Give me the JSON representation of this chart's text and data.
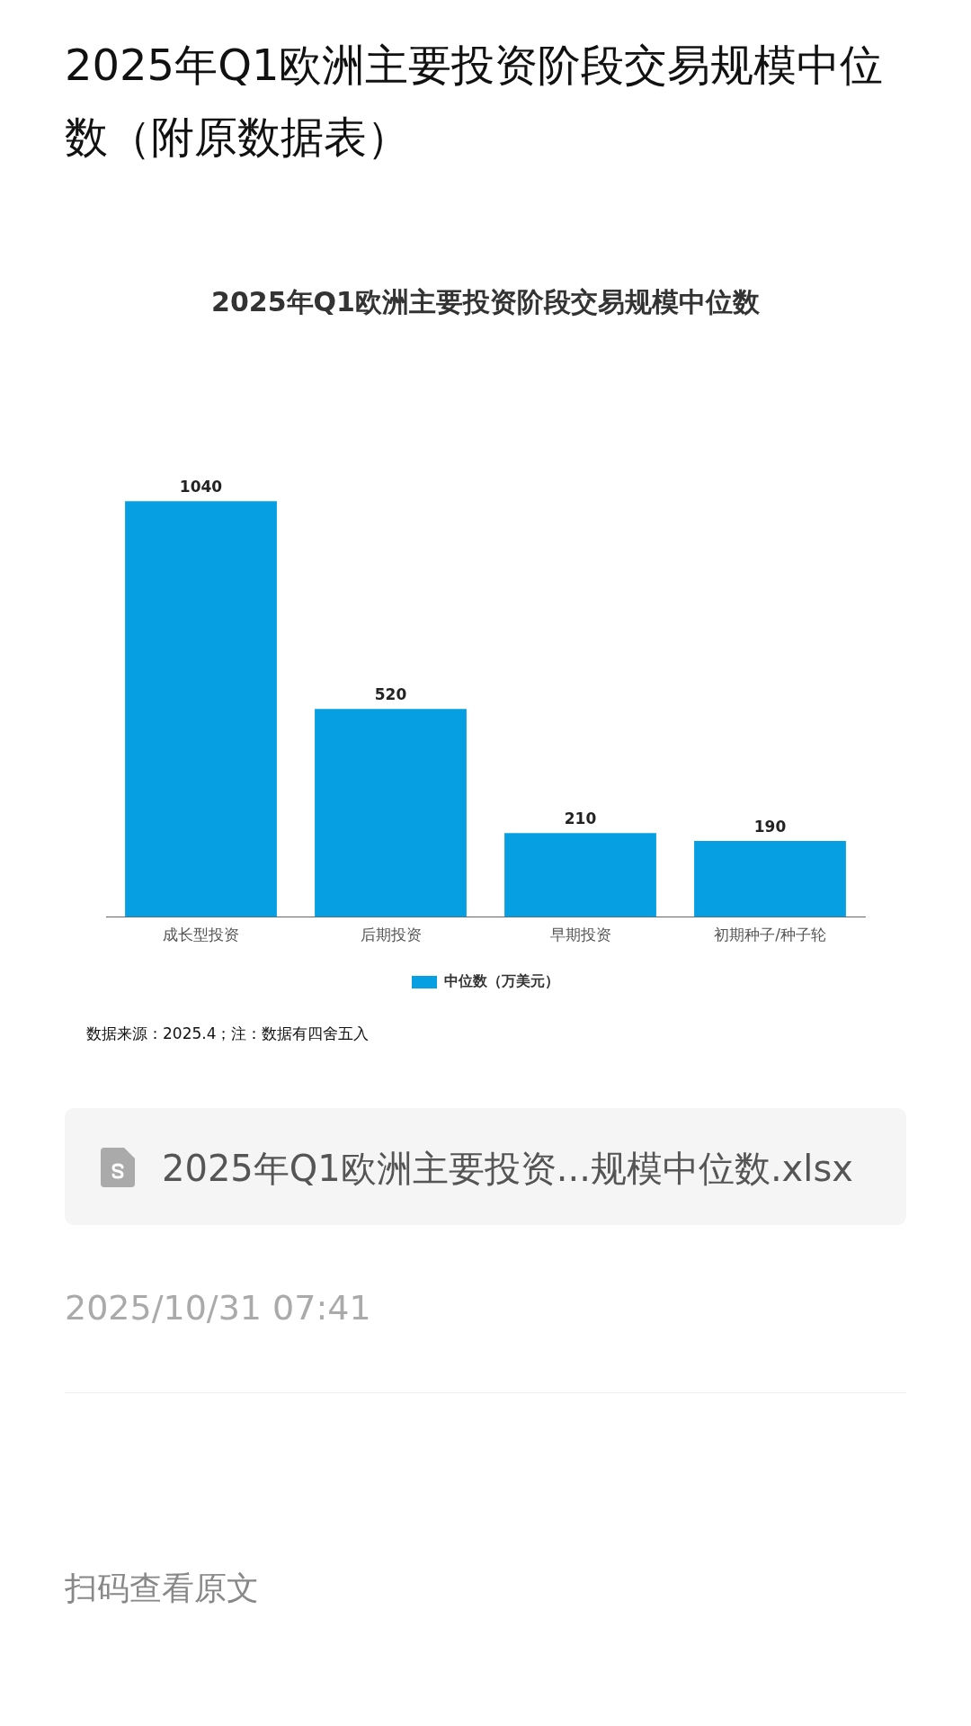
{
  "chart_data": {
    "type": "bar",
    "title": "2025年Q1欧洲主要投资阶段交易规模中位数（附原数据表）",
    "subtitle": "2025年Q1欧洲主要投资阶段交易规模中位数",
    "categories": [
      "成长型投资",
      "后期投资",
      "早期投资",
      "初期种子/种子轮"
    ],
    "series": [
      {
        "name": "中位数（万美元）",
        "color": "#059fe2",
        "values": [
          1040,
          520,
          210,
          190
        ]
      }
    ],
    "data_labels": true,
    "grid": false,
    "legend": "bottom",
    "annotations": [
      "数据来源：2025.4；注：数据有四舍五入",
      "2025年Q1欧洲主要投资...规模中位数.xlsx",
      "2025/10/31 07:41",
      "扫码查看原文"
    ]
  }
}
